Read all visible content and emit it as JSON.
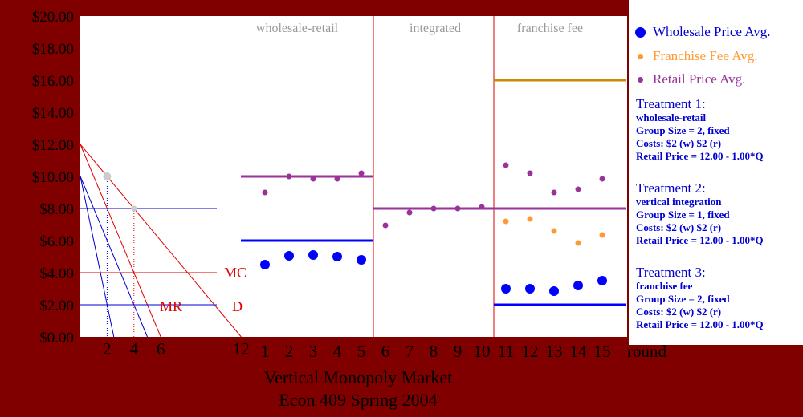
{
  "chart_data": {
    "type": "scatter",
    "title": [
      "Vertical Monopoly Market",
      "Econ 409  Spring 2004"
    ],
    "xlabel": "round",
    "ylim": [
      0,
      20
    ],
    "y_ticks": [
      "$0.00",
      "$2.00",
      "$4.00",
      "$6.00",
      "$8.00",
      "$10.00",
      "$12.00",
      "$14.00",
      "$16.00",
      "$18.00",
      "$20.00"
    ],
    "rounds": [
      1,
      2,
      3,
      4,
      5,
      6,
      7,
      8,
      9,
      10,
      11,
      12,
      13,
      14,
      15
    ],
    "quantity_axis": {
      "ticks": [
        {
          "label": "2",
          "value": 2,
          "color": "#0000d0"
        },
        {
          "label": "4",
          "value": 4,
          "color": "#e00000"
        },
        {
          "label": "6",
          "value": 6,
          "color": "#e00000"
        },
        {
          "label": "12",
          "value": 12,
          "color": "#e00000"
        }
      ]
    },
    "sections": [
      {
        "label": "wholesale-retail",
        "rounds": [
          1,
          5
        ]
      },
      {
        "label": "integrated",
        "rounds": [
          6,
          10
        ]
      },
      {
        "label": "franchise fee",
        "rounds": [
          11,
          15
        ]
      }
    ],
    "series": [
      {
        "name": "Wholesale Price Avg.",
        "color": "#0000ff",
        "rounds": [
          1,
          2,
          3,
          4,
          5,
          11,
          12,
          13,
          14,
          15
        ],
        "values": [
          4.5,
          5.05,
          5.1,
          5.0,
          4.8,
          3.0,
          3.0,
          2.85,
          3.2,
          3.5
        ]
      },
      {
        "name": "Franchise Fee Avg.",
        "color": "#ff9933",
        "rounds": [
          11,
          12,
          13,
          14,
          15
        ],
        "values": [
          7.2,
          7.35,
          6.6,
          5.85,
          6.35
        ]
      },
      {
        "name": "Retail Price Avg.",
        "color": "#993399",
        "rounds": [
          1,
          2,
          3,
          4,
          5,
          6,
          7,
          8,
          9,
          10,
          11,
          12,
          13,
          14,
          15
        ],
        "values": [
          9.0,
          10.0,
          9.85,
          9.85,
          10.2,
          6.95,
          7.75,
          8.0,
          8.0,
          8.1,
          10.7,
          10.2,
          9.0,
          9.2,
          9.85
        ]
      }
    ],
    "reference_lines": [
      {
        "section": "wholesale-retail",
        "value": 10.0,
        "color": "#993399"
      },
      {
        "section": "wholesale-retail",
        "value": 6.0,
        "color": "#0000ff"
      },
      {
        "section": "integrated",
        "value": 8.0,
        "color": "#993399"
      },
      {
        "section": "franchise fee",
        "value": 16.0,
        "color": "#cc8800"
      },
      {
        "section": "franchise fee",
        "value": 8.0,
        "color": "#993399"
      },
      {
        "section": "franchise fee",
        "value": 2.0,
        "color": "#0000ff"
      }
    ],
    "theory_curves": {
      "demand_label": "D",
      "mr_label": "MR",
      "mc_label": "MC",
      "mc_value": 4.0,
      "wholesale_mc_value": 2.0,
      "price_line_value": 8.0,
      "demand": [
        [
          0,
          12
        ],
        [
          12,
          0
        ]
      ],
      "marginal_revenue": [
        [
          0,
          12
        ],
        [
          6,
          0
        ]
      ],
      "derived_demand": [
        [
          0,
          10
        ],
        [
          5,
          0
        ]
      ],
      "derived_mr": [
        [
          0,
          10
        ],
        [
          2.5,
          0
        ]
      ],
      "grey_points": [
        [
          2,
          10
        ],
        [
          4,
          8
        ]
      ]
    },
    "legend_position": "right"
  },
  "treatments": [
    {
      "heading": "Treatment 1:",
      "name": "wholesale-retail",
      "group": "Group Size = 2, fixed",
      "costs": "Costs: $2 (w) $2 (r)",
      "demand": "Retail Price = 12.00 - 1.00*Q"
    },
    {
      "heading": "Treatment 2:",
      "name": "vertical integration",
      "group": "Group Size = 1, fixed",
      "costs": "Costs: $2 (w) $2 (r)",
      "demand": "Retail Price = 12.00 - 1.00*Q"
    },
    {
      "heading": "Treatment 3:",
      "name": "franchise fee",
      "group": "Group Size = 2, fixed",
      "costs": "Costs: $2 (w) $2 (r)",
      "demand": "Retail Price = 12.00 - 1.00*Q"
    }
  ]
}
